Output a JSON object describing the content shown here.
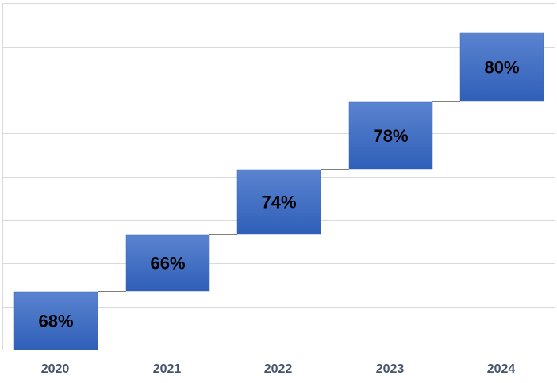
{
  "chart_data": {
    "type": "bar",
    "variant": "floating-step",
    "categories": [
      "2020",
      "2021",
      "2022",
      "2023",
      "2024"
    ],
    "labels": [
      "68%",
      "66%",
      "74%",
      "78%",
      "80%"
    ],
    "title": "",
    "xlabel": "",
    "ylabel": "",
    "grid": true,
    "legend": "none",
    "colors": {
      "bar_top": "#5b84d0",
      "bar_bottom": "#2f5fb8",
      "bar_edge": "#3a65b6",
      "gridline": "#d9d9d9",
      "connector": "#7f7f7f",
      "tick_text": "#44546a",
      "label_text": "#000000"
    }
  }
}
